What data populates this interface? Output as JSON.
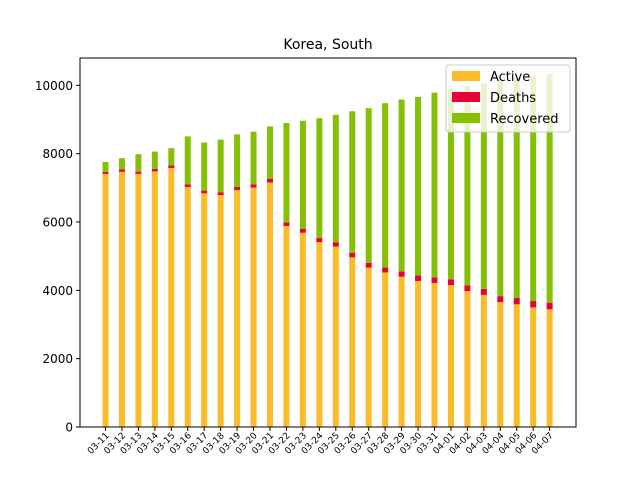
{
  "chart_data": {
    "type": "bar",
    "stacked": true,
    "title": "Korea, South",
    "xlabel": "",
    "ylabel": "",
    "ylim": [
      0,
      10800
    ],
    "yticks": [
      0,
      2000,
      4000,
      6000,
      8000,
      10000
    ],
    "grid": false,
    "legend_position": "top-right",
    "categories": [
      "03-11",
      "03-12",
      "03-13",
      "03-14",
      "03-15",
      "03-16",
      "03-17",
      "03-18",
      "03-19",
      "03-20",
      "03-21",
      "03-22",
      "03-23",
      "03-24",
      "03-25",
      "03-26",
      "03-27",
      "03-28",
      "03-29",
      "03-30",
      "03-31",
      "04-01",
      "04-02",
      "04-03",
      "04-04",
      "04-05",
      "04-06",
      "04-07"
    ],
    "series": [
      {
        "name": "Active",
        "color": "#fbbc2b",
        "values": [
          7407,
          7470,
          7408,
          7480,
          7577,
          7024,
          6838,
          6789,
          6934,
          7009,
          7157,
          5884,
          5684,
          5410,
          5281,
          4966,
          4665,
          4523,
          4398,
          4275,
          4216,
          4155,
          3979,
          3867,
          3654,
          3591,
          3500,
          3445
        ]
      },
      {
        "name": "Deaths",
        "color": "#e8003a",
        "values": [
          60,
          66,
          67,
          72,
          75,
          75,
          81,
          84,
          91,
          94,
          102,
          104,
          111,
          120,
          126,
          131,
          139,
          144,
          152,
          158,
          162,
          165,
          169,
          174,
          177,
          183,
          186,
          192
        ]
      },
      {
        "name": "Recovered",
        "color": "#85c007",
        "values": [
          288,
          333,
          510,
          510,
          510,
          1407,
          1407,
          1540,
          1540,
          1540,
          1540,
          2909,
          3166,
          3507,
          3730,
          4144,
          4528,
          4811,
          5033,
          5228,
          5408,
          5567,
          5828,
          6021,
          6325,
          6463,
          6598,
          6694
        ]
      }
    ]
  }
}
